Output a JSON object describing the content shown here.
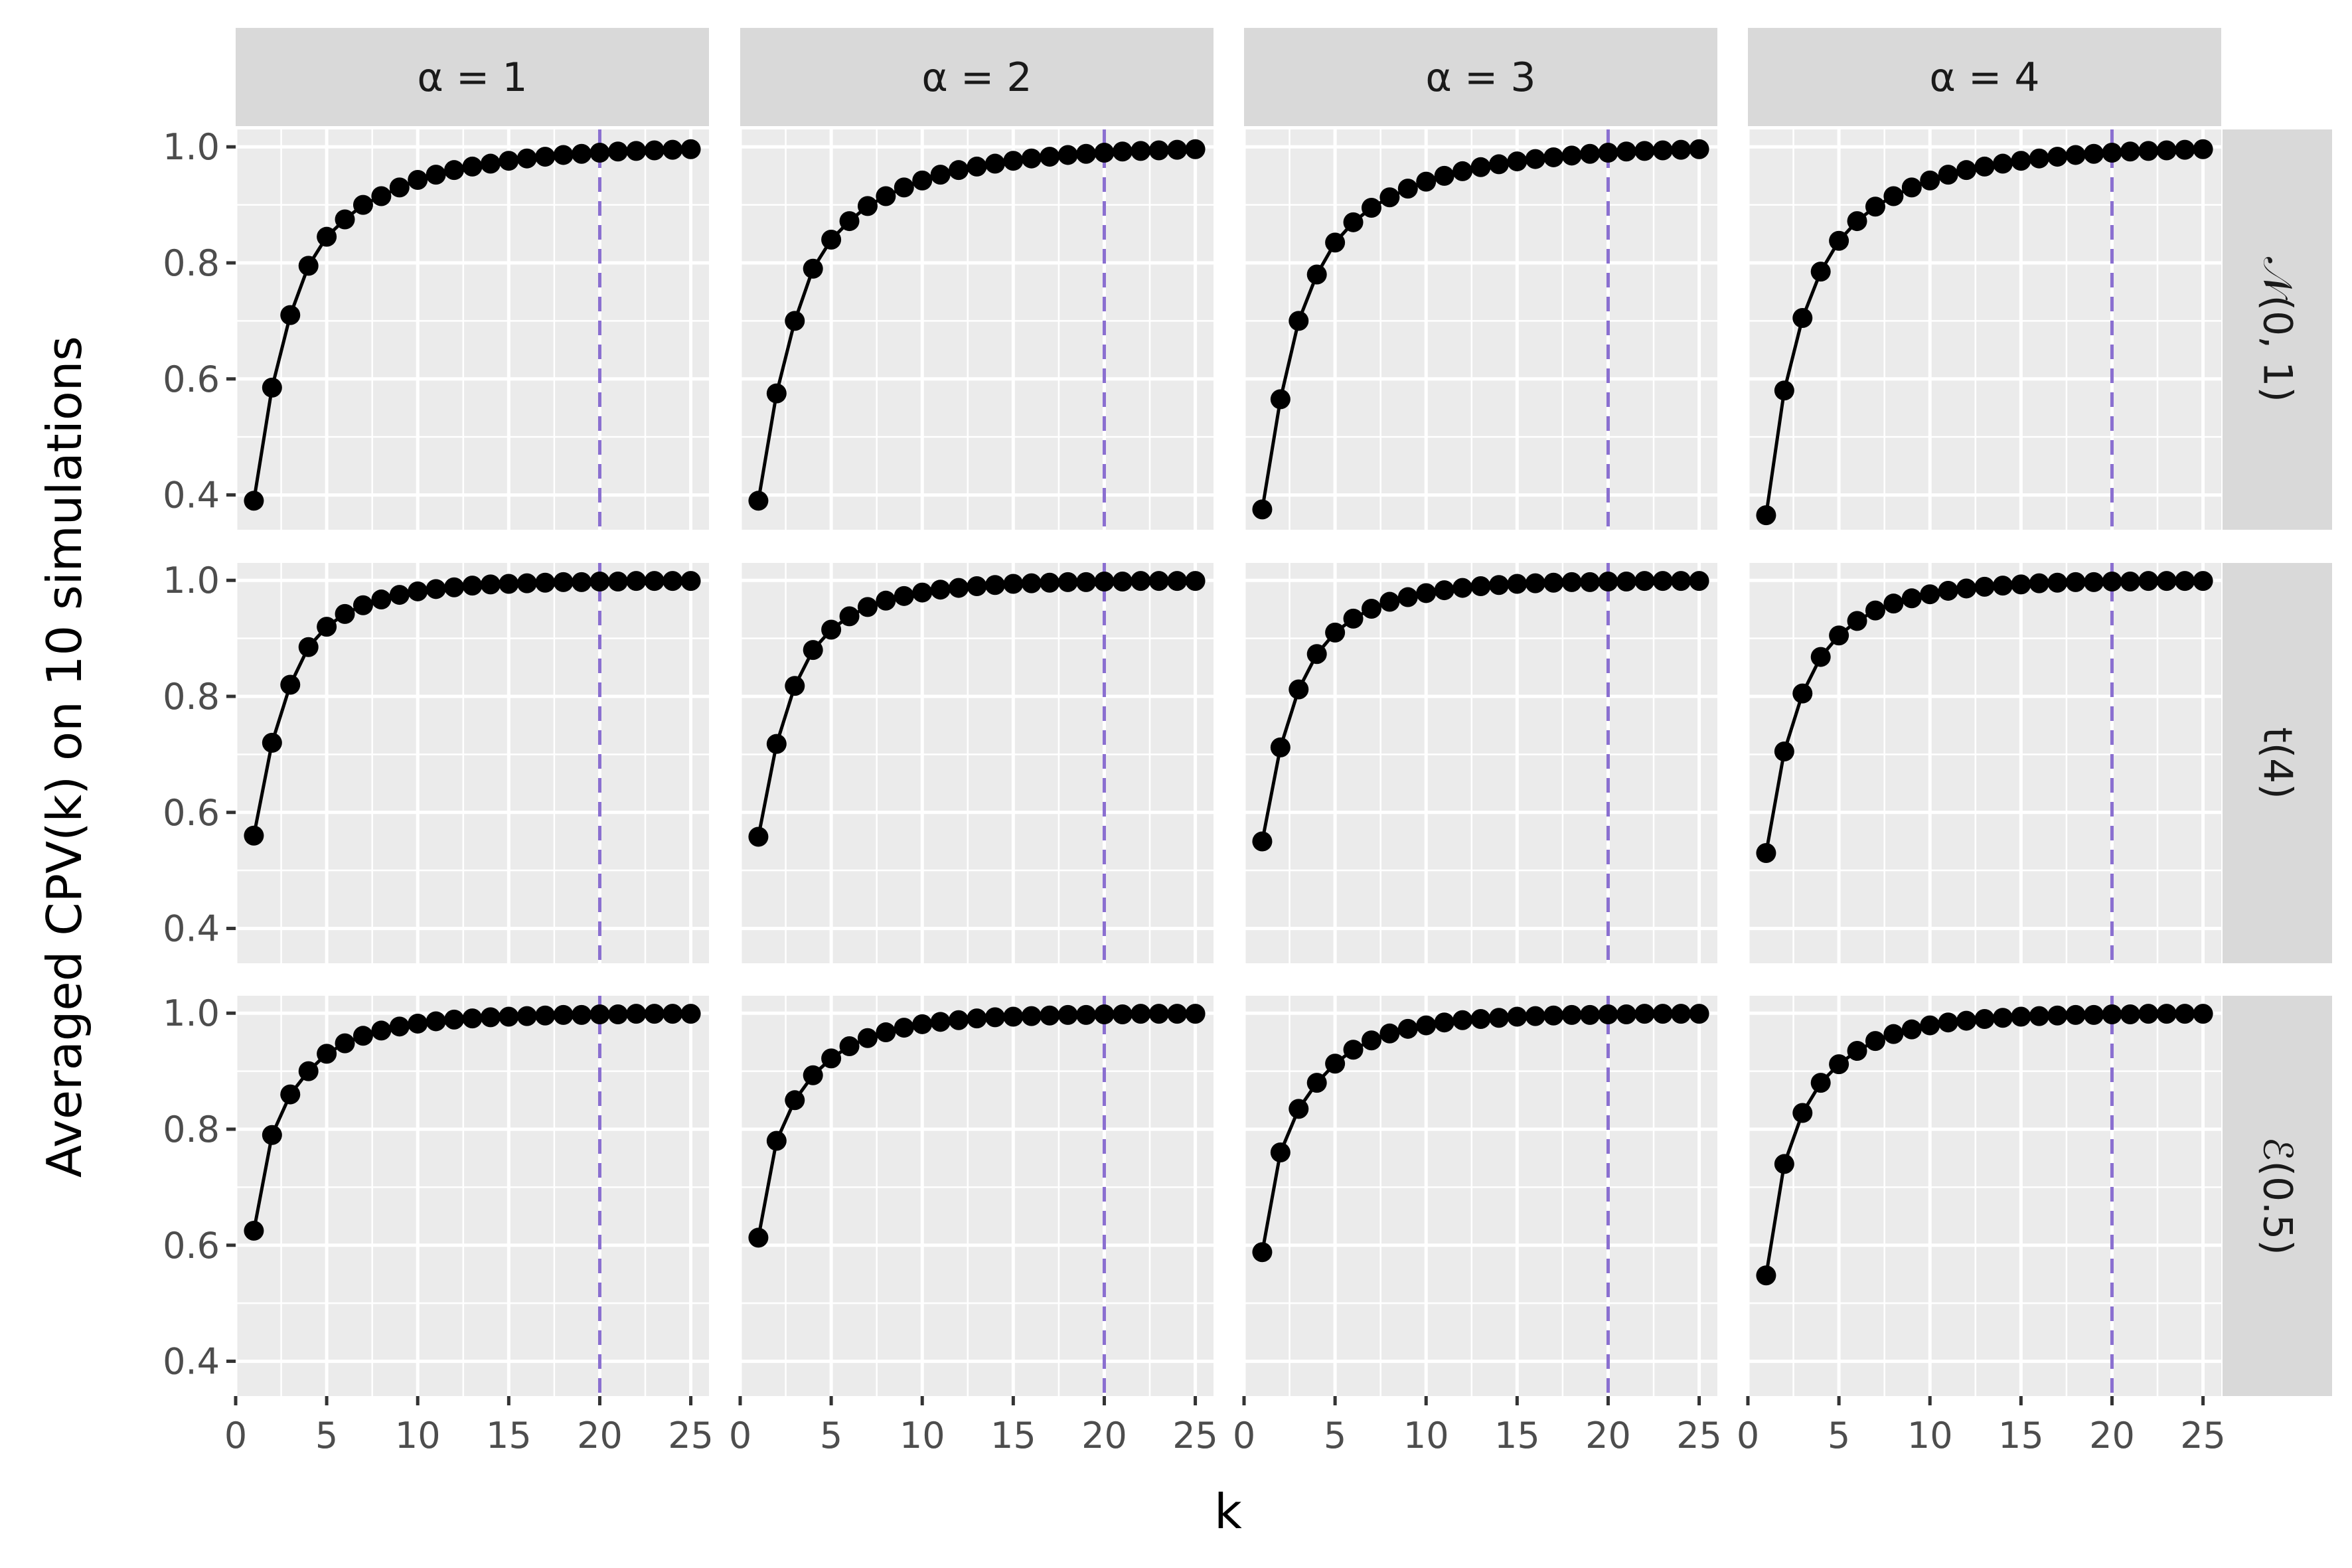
{
  "chart_data": {
    "type": "line",
    "xlabel": "k",
    "ylabel": "Averaged CPV(k) on 10 simulations",
    "xlim": [
      0,
      26
    ],
    "ylim": [
      0.34,
      1.03
    ],
    "x_ticks": [
      0,
      5,
      10,
      15,
      20,
      25
    ],
    "y_ticks": [
      0.4,
      0.6,
      0.8,
      1.0
    ],
    "y_tick_labels": [
      "0.4",
      "0.6",
      "0.8",
      "1.0"
    ],
    "reference_line": {
      "x": 20,
      "style": "dashed",
      "color": "#8a6fd0"
    },
    "grid": true,
    "panel_background": "#ebebeb",
    "strip_background": "#d9d9d9",
    "line_color": "#000000",
    "columns": [
      "α = 1",
      "α = 2",
      "α = 3",
      "α = 4"
    ],
    "rows": [
      "𝒩(0, 1)",
      "t(4)",
      "ℰ(0.5)"
    ],
    "x": [
      1,
      2,
      3,
      4,
      5,
      6,
      7,
      8,
      9,
      10,
      11,
      12,
      13,
      14,
      15,
      16,
      17,
      18,
      19,
      20,
      21,
      22,
      23,
      24,
      25
    ],
    "panels": [
      [
        {
          "column": "α = 1",
          "row": "𝒩(0, 1)",
          "values": [
            0.39,
            0.585,
            0.71,
            0.795,
            0.845,
            0.875,
            0.9,
            0.915,
            0.93,
            0.943,
            0.952,
            0.96,
            0.966,
            0.971,
            0.976,
            0.98,
            0.983,
            0.986,
            0.988,
            0.99,
            0.992,
            0.993,
            0.994,
            0.995,
            0.996
          ]
        },
        {
          "column": "α = 2",
          "row": "𝒩(0, 1)",
          "values": [
            0.39,
            0.575,
            0.7,
            0.79,
            0.84,
            0.872,
            0.898,
            0.915,
            0.93,
            0.942,
            0.952,
            0.96,
            0.966,
            0.971,
            0.976,
            0.98,
            0.983,
            0.986,
            0.988,
            0.99,
            0.992,
            0.993,
            0.994,
            0.995,
            0.996
          ]
        },
        {
          "column": "α = 3",
          "row": "𝒩(0, 1)",
          "values": [
            0.375,
            0.565,
            0.7,
            0.78,
            0.835,
            0.87,
            0.895,
            0.913,
            0.928,
            0.94,
            0.95,
            0.958,
            0.965,
            0.97,
            0.975,
            0.979,
            0.982,
            0.985,
            0.988,
            0.99,
            0.992,
            0.993,
            0.994,
            0.995,
            0.996
          ]
        },
        {
          "column": "α = 4",
          "row": "𝒩(0, 1)",
          "values": [
            0.365,
            0.58,
            0.705,
            0.785,
            0.838,
            0.872,
            0.897,
            0.915,
            0.93,
            0.942,
            0.952,
            0.96,
            0.966,
            0.971,
            0.976,
            0.98,
            0.983,
            0.986,
            0.988,
            0.99,
            0.992,
            0.993,
            0.994,
            0.995,
            0.996
          ]
        }
      ],
      [
        {
          "column": "α = 1",
          "row": "t(4)",
          "values": [
            0.56,
            0.72,
            0.82,
            0.885,
            0.92,
            0.942,
            0.957,
            0.967,
            0.975,
            0.981,
            0.985,
            0.988,
            0.991,
            0.993,
            0.994,
            0.995,
            0.996,
            0.997,
            0.997,
            0.998,
            0.998,
            0.999,
            0.999,
            0.999,
            0.999
          ]
        },
        {
          "column": "α = 2",
          "row": "t(4)",
          "values": [
            0.558,
            0.718,
            0.818,
            0.88,
            0.915,
            0.938,
            0.954,
            0.965,
            0.973,
            0.979,
            0.984,
            0.987,
            0.99,
            0.992,
            0.994,
            0.995,
            0.996,
            0.997,
            0.997,
            0.998,
            0.998,
            0.999,
            0.999,
            0.999,
            0.999
          ]
        },
        {
          "column": "α = 3",
          "row": "t(4)",
          "values": [
            0.55,
            0.712,
            0.812,
            0.873,
            0.91,
            0.934,
            0.951,
            0.963,
            0.971,
            0.978,
            0.983,
            0.987,
            0.99,
            0.992,
            0.994,
            0.995,
            0.996,
            0.997,
            0.997,
            0.998,
            0.998,
            0.999,
            0.999,
            0.999,
            0.999
          ]
        },
        {
          "column": "α = 4",
          "row": "t(4)",
          "values": [
            0.53,
            0.705,
            0.805,
            0.868,
            0.905,
            0.93,
            0.948,
            0.96,
            0.969,
            0.976,
            0.982,
            0.986,
            0.989,
            0.991,
            0.993,
            0.995,
            0.996,
            0.997,
            0.997,
            0.998,
            0.998,
            0.999,
            0.999,
            0.999,
            0.999
          ]
        }
      ],
      [
        {
          "column": "α = 1",
          "row": "ℰ(0.5)",
          "values": [
            0.625,
            0.79,
            0.86,
            0.9,
            0.93,
            0.948,
            0.961,
            0.97,
            0.977,
            0.982,
            0.986,
            0.989,
            0.991,
            0.993,
            0.994,
            0.995,
            0.996,
            0.997,
            0.997,
            0.998,
            0.998,
            0.999,
            0.999,
            0.999,
            0.999
          ]
        },
        {
          "column": "α = 2",
          "row": "ℰ(0.5)",
          "values": [
            0.613,
            0.78,
            0.85,
            0.893,
            0.922,
            0.943,
            0.957,
            0.967,
            0.975,
            0.981,
            0.985,
            0.988,
            0.991,
            0.993,
            0.994,
            0.995,
            0.996,
            0.997,
            0.997,
            0.998,
            0.998,
            0.999,
            0.999,
            0.999,
            0.999
          ]
        },
        {
          "column": "α = 3",
          "row": "ℰ(0.5)",
          "values": [
            0.588,
            0.76,
            0.835,
            0.88,
            0.913,
            0.937,
            0.953,
            0.965,
            0.973,
            0.979,
            0.984,
            0.988,
            0.99,
            0.992,
            0.994,
            0.995,
            0.996,
            0.997,
            0.997,
            0.998,
            0.998,
            0.999,
            0.999,
            0.999,
            0.999
          ]
        },
        {
          "column": "α = 4",
          "row": "ℰ(0.5)",
          "values": [
            0.548,
            0.74,
            0.828,
            0.88,
            0.912,
            0.935,
            0.952,
            0.964,
            0.972,
            0.979,
            0.984,
            0.987,
            0.99,
            0.992,
            0.994,
            0.995,
            0.996,
            0.997,
            0.997,
            0.998,
            0.998,
            0.999,
            0.999,
            0.999,
            0.999
          ]
        }
      ]
    ]
  }
}
